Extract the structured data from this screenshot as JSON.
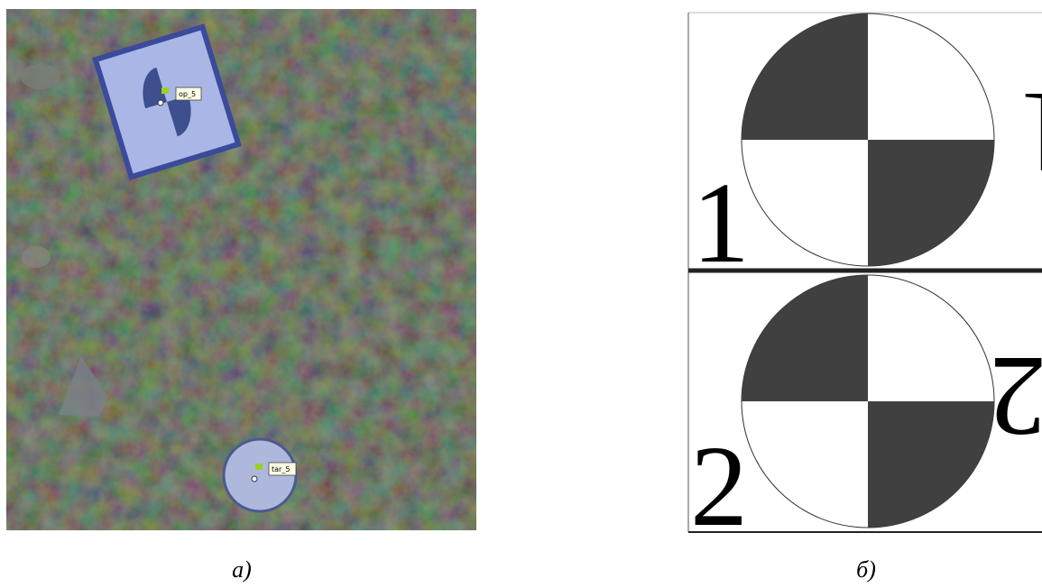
{
  "panel_a": {
    "markers": [
      "op_5",
      "tar_5"
    ],
    "caption": "а)"
  },
  "panel_b": {
    "numbers": [
      "1",
      "2"
    ],
    "caption": "б)"
  }
}
